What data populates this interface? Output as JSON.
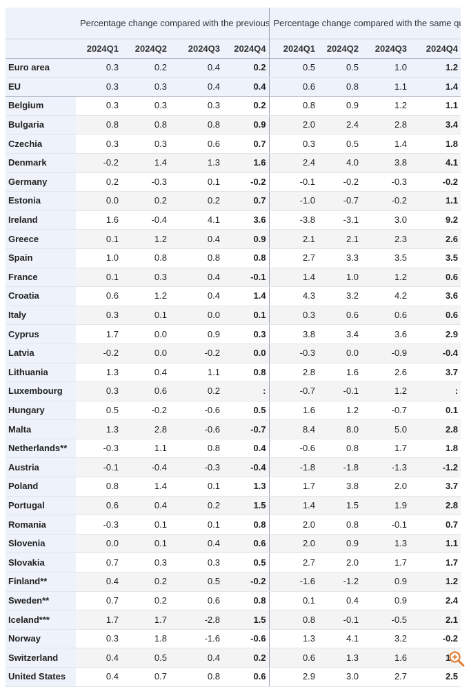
{
  "header": {
    "group1": "Percentage change compared with the previous quarter",
    "group2": "Percentage change compared with the same quarter of the previous year",
    "quarters": [
      "2024Q1",
      "2024Q2",
      "2024Q3",
      "2024Q4"
    ]
  },
  "rows": [
    {
      "name": "Euro area",
      "qoq": [
        "0.3",
        "0.2",
        "0.4",
        "0.2"
      ],
      "yoy": [
        "0.5",
        "0.5",
        "1.0",
        "1.2"
      ]
    },
    {
      "name": "EU",
      "qoq": [
        "0.3",
        "0.3",
        "0.4",
        "0.4"
      ],
      "yoy": [
        "0.6",
        "0.8",
        "1.1",
        "1.4"
      ]
    },
    {
      "name": "Belgium",
      "qoq": [
        "0.3",
        "0.3",
        "0.3",
        "0.2"
      ],
      "yoy": [
        "0.8",
        "0.9",
        "1.2",
        "1.1"
      ]
    },
    {
      "name": "Bulgaria",
      "qoq": [
        "0.8",
        "0.8",
        "0.8",
        "0.9"
      ],
      "yoy": [
        "2.0",
        "2.4",
        "2.8",
        "3.4"
      ]
    },
    {
      "name": "Czechia",
      "qoq": [
        "0.3",
        "0.3",
        "0.6",
        "0.7"
      ],
      "yoy": [
        "0.3",
        "0.5",
        "1.4",
        "1.8"
      ]
    },
    {
      "name": "Denmark",
      "qoq": [
        "-0.2",
        "1.4",
        "1.3",
        "1.6"
      ],
      "yoy": [
        "2.4",
        "4.0",
        "3.8",
        "4.1"
      ]
    },
    {
      "name": "Germany",
      "qoq": [
        "0.2",
        "-0.3",
        "0.1",
        "-0.2"
      ],
      "yoy": [
        "-0.1",
        "-0.2",
        "-0.3",
        "-0.2"
      ]
    },
    {
      "name": "Estonia",
      "qoq": [
        "0.0",
        "0.2",
        "0.2",
        "0.7"
      ],
      "yoy": [
        "-1.0",
        "-0.7",
        "-0.2",
        "1.1"
      ]
    },
    {
      "name": "Ireland",
      "qoq": [
        "1.6",
        "-0.4",
        "4.1",
        "3.6"
      ],
      "yoy": [
        "-3.8",
        "-3.1",
        "3.0",
        "9.2"
      ]
    },
    {
      "name": "Greece",
      "qoq": [
        "0.1",
        "1.2",
        "0.4",
        "0.9"
      ],
      "yoy": [
        "2.1",
        "2.1",
        "2.3",
        "2.6"
      ]
    },
    {
      "name": "Spain",
      "qoq": [
        "1.0",
        "0.8",
        "0.8",
        "0.8"
      ],
      "yoy": [
        "2.7",
        "3.3",
        "3.5",
        "3.5"
      ]
    },
    {
      "name": "France",
      "qoq": [
        "0.1",
        "0.3",
        "0.4",
        "-0.1"
      ],
      "yoy": [
        "1.4",
        "1.0",
        "1.2",
        "0.6"
      ]
    },
    {
      "name": "Croatia",
      "qoq": [
        "0.6",
        "1.2",
        "0.4",
        "1.4"
      ],
      "yoy": [
        "4.3",
        "3.2",
        "4.2",
        "3.6"
      ]
    },
    {
      "name": "Italy",
      "qoq": [
        "0.3",
        "0.1",
        "0.0",
        "0.1"
      ],
      "yoy": [
        "0.3",
        "0.6",
        "0.6",
        "0.6"
      ]
    },
    {
      "name": "Cyprus",
      "qoq": [
        "1.7",
        "0.0",
        "0.9",
        "0.3"
      ],
      "yoy": [
        "3.8",
        "3.4",
        "3.6",
        "2.9"
      ]
    },
    {
      "name": "Latvia",
      "qoq": [
        "-0.2",
        "0.0",
        "-0.2",
        "0.0"
      ],
      "yoy": [
        "-0.3",
        "0.0",
        "-0.9",
        "-0.4"
      ]
    },
    {
      "name": "Lithuania",
      "qoq": [
        "1.3",
        "0.4",
        "1.1",
        "0.8"
      ],
      "yoy": [
        "2.8",
        "1.6",
        "2.6",
        "3.7"
      ]
    },
    {
      "name": "Luxembourg",
      "qoq": [
        "0.3",
        "0.6",
        "0.2",
        ":"
      ],
      "yoy": [
        "-0.7",
        "-0.1",
        "1.2",
        ":"
      ]
    },
    {
      "name": "Hungary",
      "qoq": [
        "0.5",
        "-0.2",
        "-0.6",
        "0.5"
      ],
      "yoy": [
        "1.6",
        "1.2",
        "-0.7",
        "0.1"
      ]
    },
    {
      "name": "Malta",
      "qoq": [
        "1.3",
        "2.8",
        "-0.6",
        "-0.7"
      ],
      "yoy": [
        "8.4",
        "8.0",
        "5.0",
        "2.8"
      ]
    },
    {
      "name": "Netherlands**",
      "qoq": [
        "-0.3",
        "1.1",
        "0.8",
        "0.4"
      ],
      "yoy": [
        "-0.6",
        "0.8",
        "1.7",
        "1.8"
      ]
    },
    {
      "name": "Austria",
      "qoq": [
        "-0.1",
        "-0.4",
        "-0.3",
        "-0.4"
      ],
      "yoy": [
        "-1.8",
        "-1.8",
        "-1.3",
        "-1.2"
      ]
    },
    {
      "name": "Poland",
      "qoq": [
        "0.8",
        "1.4",
        "0.1",
        "1.3"
      ],
      "yoy": [
        "1.7",
        "3.8",
        "2.0",
        "3.7"
      ]
    },
    {
      "name": "Portugal",
      "qoq": [
        "0.6",
        "0.4",
        "0.2",
        "1.5"
      ],
      "yoy": [
        "1.4",
        "1.5",
        "1.9",
        "2.8"
      ]
    },
    {
      "name": "Romania",
      "qoq": [
        "-0.3",
        "0.1",
        "0.1",
        "0.8"
      ],
      "yoy": [
        "2.0",
        "0.8",
        "-0.1",
        "0.7"
      ]
    },
    {
      "name": "Slovenia",
      "qoq": [
        "0.0",
        "0.1",
        "0.4",
        "0.6"
      ],
      "yoy": [
        "2.0",
        "0.9",
        "1.3",
        "1.1"
      ]
    },
    {
      "name": "Slovakia",
      "qoq": [
        "0.7",
        "0.3",
        "0.3",
        "0.5"
      ],
      "yoy": [
        "2.7",
        "2.0",
        "1.7",
        "1.7"
      ]
    },
    {
      "name": "Finland**",
      "qoq": [
        "0.4",
        "0.2",
        "0.5",
        "-0.2"
      ],
      "yoy": [
        "-1.6",
        "-1.2",
        "0.9",
        "1.2"
      ]
    },
    {
      "name": "Sweden**",
      "qoq": [
        "0.7",
        "0.2",
        "0.6",
        "0.8"
      ],
      "yoy": [
        "0.1",
        "0.4",
        "0.9",
        "2.4"
      ]
    },
    {
      "name": "Iceland***",
      "qoq": [
        "1.7",
        "1.7",
        "-2.8",
        "1.5"
      ],
      "yoy": [
        "0.8",
        "-0.1",
        "-0.5",
        "2.1"
      ]
    },
    {
      "name": "Norway",
      "qoq": [
        "0.3",
        "1.8",
        "-1.6",
        "-0.6"
      ],
      "yoy": [
        "1.3",
        "4.1",
        "3.2",
        "-0.2"
      ]
    },
    {
      "name": "Switzerland",
      "qoq": [
        "0.4",
        "0.5",
        "0.4",
        "0.2"
      ],
      "yoy": [
        "0.6",
        "1.3",
        "1.6",
        "1.6"
      ]
    },
    {
      "name": "United States",
      "qoq": [
        "0.4",
        "0.7",
        "0.8",
        "0.6"
      ],
      "yoy": [
        "2.9",
        "3.0",
        "2.7",
        "2.5"
      ]
    }
  ],
  "icons": {
    "zoom": "zoom-in-icon"
  }
}
